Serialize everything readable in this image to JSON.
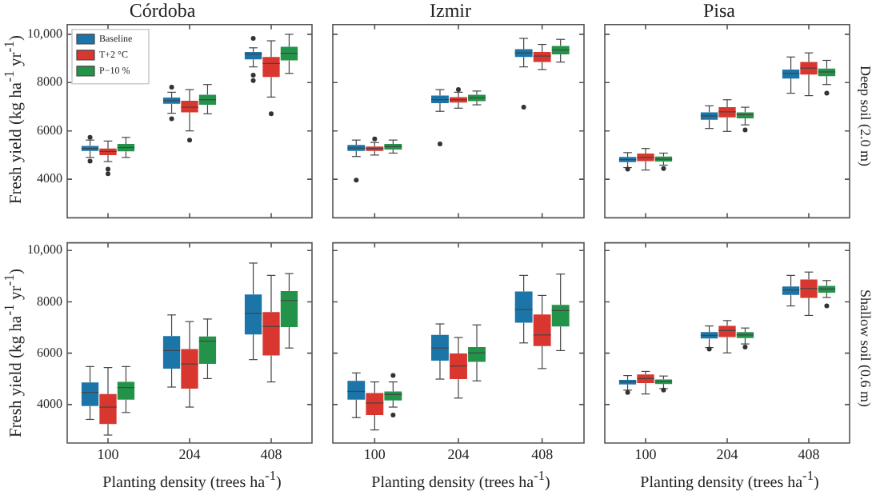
{
  "chart_data": [
    {
      "type": "box",
      "title": "Córdoba",
      "ylabel": "Fresh yield (kg ha$^{-1}$ yr$^{-1}$)",
      "categories": [
        "100",
        "204",
        "408"
      ],
      "ylim": [
        2400,
        10400
      ],
      "yticks": [
        4000,
        6000,
        8000,
        {
          "value": 10000,
          "label": "10,000"
        }
      ],
      "tick_labels": "y",
      "legend": "top left",
      "series": [
        {
          "name": "Baseline",
          "color": "#1b75a8",
          "boxes": [
            {
              "low": 4900,
              "q1": 5170,
              "median": 5270,
              "q3": 5380,
              "high": 5620,
              "outliers": [
                5730,
                4750
              ]
            },
            {
              "low": 6730,
              "q1": 7120,
              "median": 7250,
              "q3": 7380,
              "high": 7600,
              "outliers": [
                7810,
                6500
              ]
            },
            {
              "low": 8650,
              "q1": 8960,
              "median": 9170,
              "q3": 9270,
              "high": 9440,
              "outliers": [
                9830,
                8310,
                8080
              ]
            }
          ]
        },
        {
          "name": "T+2 °C",
          "color": "#d9362f",
          "boxes": [
            {
              "low": 4730,
              "q1": 5000,
              "median": 5150,
              "q3": 5270,
              "high": 5580,
              "outliers": [
                4420,
                4230
              ]
            },
            {
              "low": 6000,
              "q1": 6770,
              "median": 6980,
              "q3": 7250,
              "high": 7710,
              "outliers": [
                5620
              ]
            },
            {
              "low": 7400,
              "q1": 8230,
              "median": 8790,
              "q3": 9060,
              "high": 9730,
              "outliers": [
                6710
              ]
            }
          ]
        },
        {
          "name": "P−10 %",
          "color": "#23934a",
          "boxes": [
            {
              "low": 4900,
              "q1": 5150,
              "median": 5310,
              "q3": 5460,
              "high": 5730
            },
            {
              "low": 6710,
              "q1": 7080,
              "median": 7290,
              "q3": 7500,
              "high": 7920
            },
            {
              "low": 8380,
              "q1": 8920,
              "median": 9210,
              "q3": 9480,
              "high": 10000
            }
          ]
        }
      ]
    },
    {
      "type": "box",
      "title": "Izmir",
      "categories": [
        "100",
        "204",
        "408"
      ],
      "ylim": [
        2400,
        10400
      ],
      "yticks": [
        {
          "value": 4000,
          "label": null
        },
        {
          "value": 6000,
          "label": null
        },
        {
          "value": 8000,
          "label": null
        },
        {
          "value": 10000,
          "label": null
        }
      ],
      "tick_labels": false,
      "series": [
        {
          "color": "#1b75a8",
          "boxes": [
            {
              "low": 4940,
              "q1": 5170,
              "median": 5290,
              "q3": 5420,
              "high": 5620,
              "outliers": [
                3960
              ]
            },
            {
              "low": 6810,
              "q1": 7150,
              "median": 7290,
              "q3": 7460,
              "high": 7710,
              "outliers": [
                5460
              ]
            },
            {
              "low": 8650,
              "q1": 9060,
              "median": 9230,
              "q3": 9380,
              "high": 9830,
              "outliers": [
                6980
              ]
            }
          ]
        },
        {
          "color": "#d9362f",
          "boxes": [
            {
              "low": 5000,
              "q1": 5170,
              "median": 5270,
              "q3": 5350,
              "high": 5520,
              "outliers": [
                5670
              ]
            },
            {
              "low": 6940,
              "q1": 7170,
              "median": 7290,
              "q3": 7400,
              "high": 7600,
              "outliers": [
                7710
              ]
            },
            {
              "low": 8540,
              "q1": 8850,
              "median": 9100,
              "q3": 9270,
              "high": 9580
            }
          ]
        },
        {
          "color": "#23934a",
          "boxes": [
            {
              "low": 5080,
              "q1": 5230,
              "median": 5350,
              "q3": 5460,
              "high": 5620
            },
            {
              "low": 7080,
              "q1": 7230,
              "median": 7370,
              "q3": 7500,
              "high": 7650
            },
            {
              "low": 8850,
              "q1": 9170,
              "median": 9350,
              "q3": 9520,
              "high": 9790
            }
          ]
        }
      ]
    },
    {
      "type": "box",
      "title": "Pisa",
      "y2label": "Deep soil (2.0 m)",
      "categories": [
        "100",
        "204",
        "408"
      ],
      "ylim": [
        2400,
        10400
      ],
      "yticks": [
        {
          "value": 4000,
          "label": null
        },
        {
          "value": 6000,
          "label": null
        },
        {
          "value": 8000,
          "label": null
        },
        {
          "value": 10000,
          "label": null
        }
      ],
      "tick_labels": false,
      "series": [
        {
          "color": "#1b75a8",
          "boxes": [
            {
              "low": 4480,
              "q1": 4710,
              "median": 4810,
              "q3": 4920,
              "high": 5100,
              "outliers": [
                4420
              ]
            },
            {
              "low": 6100,
              "q1": 6460,
              "median": 6620,
              "q3": 6770,
              "high": 7040
            },
            {
              "low": 7560,
              "q1": 8170,
              "median": 8380,
              "q3": 8540,
              "high": 9060
            }
          ]
        },
        {
          "color": "#d9362f",
          "boxes": [
            {
              "low": 4380,
              "q1": 4750,
              "median": 4900,
              "q3": 5060,
              "high": 5270
            },
            {
              "low": 5980,
              "q1": 6560,
              "median": 6790,
              "q3": 6980,
              "high": 7290
            },
            {
              "low": 7460,
              "q1": 8330,
              "median": 8600,
              "q3": 8850,
              "high": 9230
            }
          ]
        },
        {
          "color": "#23934a",
          "boxes": [
            {
              "low": 4580,
              "q1": 4730,
              "median": 4830,
              "q3": 4940,
              "high": 5080,
              "outliers": [
                4440
              ]
            },
            {
              "low": 6250,
              "q1": 6520,
              "median": 6670,
              "q3": 6770,
              "high": 6980,
              "outliers": [
                6040
              ]
            },
            {
              "low": 7920,
              "q1": 8270,
              "median": 8440,
              "q3": 8580,
              "high": 8920,
              "outliers": [
                7560
              ]
            }
          ]
        }
      ]
    },
    {
      "type": "box",
      "ylabel": "Fresh yield (kg ha$^{-1}$ yr$^{-1}$)",
      "xlabel": "Planting density (trees ha$^{-1}$)",
      "categories": [
        "100",
        "204",
        "408"
      ],
      "ylim": [
        2500,
        10300
      ],
      "yticks": [
        4000,
        6000,
        8000,
        {
          "value": 10000,
          "label": "10,000"
        }
      ],
      "series": [
        {
          "color": "#1b75a8",
          "boxes": [
            {
              "low": 3420,
              "q1": 3940,
              "median": 4470,
              "q3": 4860,
              "high": 5480
            },
            {
              "low": 4680,
              "q1": 5400,
              "median": 6100,
              "q3": 6670,
              "high": 7490
            },
            {
              "low": 5750,
              "q1": 6730,
              "median": 7550,
              "q3": 8290,
              "high": 9510
            }
          ]
        },
        {
          "color": "#d9362f",
          "boxes": [
            {
              "low": 2810,
              "q1": 3240,
              "median": 3900,
              "q3": 4410,
              "high": 5440
            },
            {
              "low": 3900,
              "q1": 4620,
              "median": 5580,
              "q3": 6160,
              "high": 7230
            },
            {
              "low": 4880,
              "q1": 5910,
              "median": 7040,
              "q3": 7600,
              "high": 9030
            }
          ]
        },
        {
          "color": "#23934a",
          "boxes": [
            {
              "low": 3690,
              "q1": 4190,
              "median": 4660,
              "q3": 4880,
              "high": 5480
            },
            {
              "low": 5010,
              "q1": 5580,
              "median": 6470,
              "q3": 6650,
              "high": 7330
            },
            {
              "low": 6200,
              "q1": 7020,
              "median": 8050,
              "q3": 8420,
              "high": 9100
            }
          ]
        }
      ]
    },
    {
      "type": "box",
      "xlabel": "Planting density (trees ha$^{-1}$)",
      "categories": [
        "100",
        "204",
        "408"
      ],
      "ylim": [
        2500,
        10300
      ],
      "yticks": [
        {
          "value": 4000,
          "label": null
        },
        {
          "value": 6000,
          "label": null
        },
        {
          "value": 8000,
          "label": null
        },
        {
          "value": 10000,
          "label": null
        }
      ],
      "tick_labels": "x",
      "series": [
        {
          "color": "#1b75a8",
          "boxes": [
            {
              "low": 3490,
              "q1": 4190,
              "median": 4510,
              "q3": 4920,
              "high": 5230
            },
            {
              "low": 4990,
              "q1": 5710,
              "median": 6200,
              "q3": 6710,
              "high": 7140
            },
            {
              "low": 6400,
              "q1": 7190,
              "median": 7700,
              "q3": 8400,
              "high": 9030
            }
          ]
        },
        {
          "color": "#d9362f",
          "boxes": [
            {
              "low": 3010,
              "q1": 3590,
              "median": 4060,
              "q3": 4450,
              "high": 4880
            },
            {
              "low": 4250,
              "q1": 4990,
              "median": 5500,
              "q3": 5990,
              "high": 6610
            },
            {
              "low": 5400,
              "q1": 6280,
              "median": 6710,
              "q3": 7510,
              "high": 8250
            }
          ]
        },
        {
          "color": "#23934a",
          "boxes": [
            {
              "low": 3900,
              "q1": 4160,
              "median": 4390,
              "q3": 4510,
              "high": 4880,
              "outliers": [
                5130,
                3590
              ]
            },
            {
              "low": 4920,
              "q1": 5660,
              "median": 6010,
              "q3": 6240,
              "high": 7100
            },
            {
              "low": 6100,
              "q1": 7040,
              "median": 7660,
              "q3": 7880,
              "high": 9080
            }
          ]
        }
      ]
    },
    {
      "type": "box",
      "xlabel": "Planting density (trees ha$^{-1}$)",
      "y2label": "Shallow soil (0.6 m)",
      "categories": [
        "100",
        "204",
        "408"
      ],
      "ylim": [
        2500,
        10300
      ],
      "yticks": [
        {
          "value": 4000,
          "label": null
        },
        {
          "value": 6000,
          "label": null
        },
        {
          "value": 8000,
          "label": null
        },
        {
          "value": 10000,
          "label": null
        }
      ],
      "tick_labels": "x",
      "series": [
        {
          "color": "#1b75a8",
          "boxes": [
            {
              "low": 4560,
              "q1": 4780,
              "median": 4880,
              "q3": 4960,
              "high": 5130,
              "outliers": [
                4470
              ]
            },
            {
              "low": 6220,
              "q1": 6570,
              "median": 6690,
              "q3": 6820,
              "high": 7060,
              "outliers": [
                6160
              ]
            },
            {
              "low": 7840,
              "q1": 8270,
              "median": 8460,
              "q3": 8600,
              "high": 9030
            }
          ]
        },
        {
          "color": "#d9362f",
          "boxes": [
            {
              "low": 4410,
              "q1": 4840,
              "median": 5010,
              "q3": 5170,
              "high": 5290
            },
            {
              "low": 6010,
              "q1": 6630,
              "median": 6880,
              "q3": 7060,
              "high": 7270
            },
            {
              "low": 7470,
              "q1": 8150,
              "median": 8520,
              "q3": 8870,
              "high": 9160
            }
          ]
        },
        {
          "color": "#23934a",
          "boxes": [
            {
              "low": 4620,
              "q1": 4800,
              "median": 4900,
              "q3": 4980,
              "high": 5110,
              "outliers": [
                4560
              ]
            },
            {
              "low": 6360,
              "q1": 6590,
              "median": 6710,
              "q3": 6820,
              "high": 6980,
              "outliers": [
                6240
              ]
            },
            {
              "low": 8170,
              "q1": 8360,
              "median": 8500,
              "q3": 8620,
              "high": 8830,
              "outliers": [
                7840
              ]
            }
          ]
        }
      ]
    }
  ]
}
